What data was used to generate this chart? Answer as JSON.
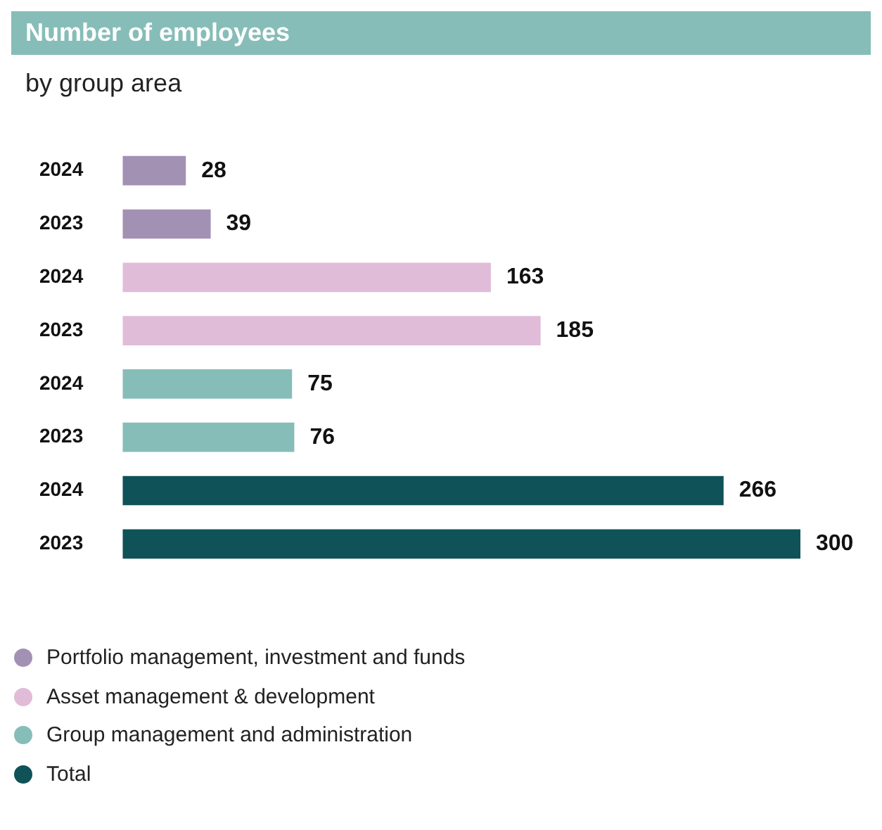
{
  "chart_data": {
    "type": "bar",
    "orientation": "horizontal",
    "title": "Number of employees",
    "subtitle": "by group area",
    "categories": [
      "2024",
      "2023",
      "2024",
      "2023",
      "2024",
      "2023",
      "2024",
      "2023"
    ],
    "series": [
      {
        "name": "Portfolio management, investment and funds",
        "color": "#a391b4",
        "values": [
          28,
          39,
          null,
          null,
          null,
          null,
          null,
          null
        ]
      },
      {
        "name": "Asset management & development",
        "color": "#e0bcd8",
        "values": [
          null,
          null,
          163,
          185,
          null,
          null,
          null,
          null
        ]
      },
      {
        "name": "Group management and administration",
        "color": "#86bdb8",
        "values": [
          null,
          null,
          null,
          null,
          75,
          76,
          null,
          null
        ]
      },
      {
        "name": "Total",
        "color": "#0f5257",
        "values": [
          null,
          null,
          null,
          null,
          null,
          null,
          266,
          300
        ]
      }
    ],
    "data_labels": true,
    "grid": false,
    "legend": "bottom",
    "marker": "circle"
  }
}
